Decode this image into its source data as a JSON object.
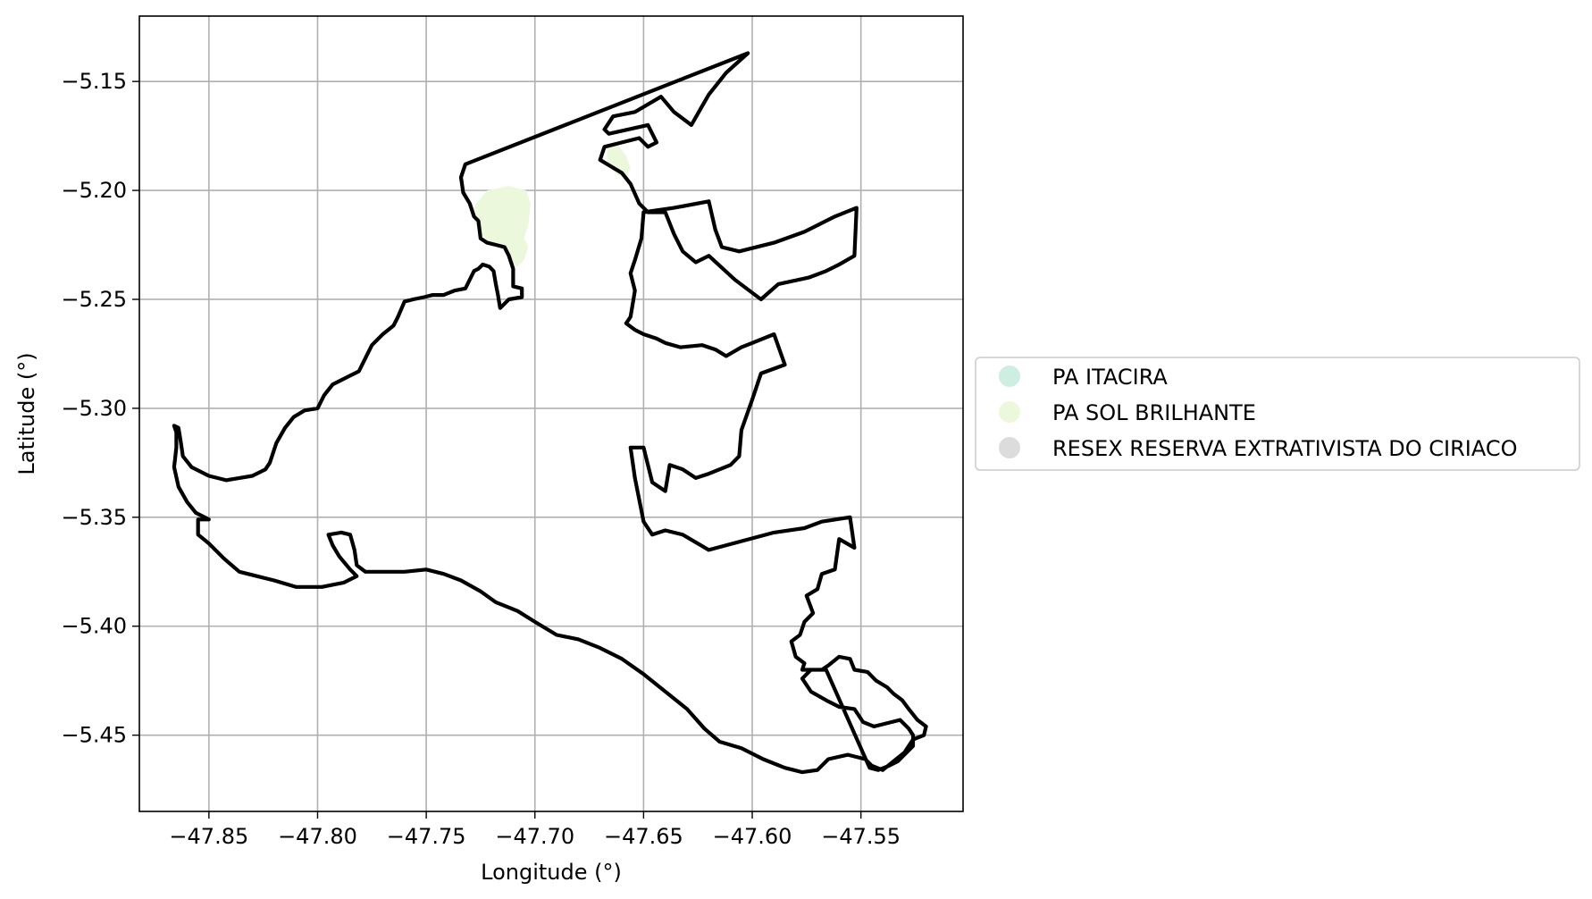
{
  "chart_data": {
    "type": "map",
    "xlabel": "Longitude (°)",
    "ylabel": "Latitude (°)",
    "xlim": [
      -47.882,
      -47.503
    ],
    "ylim": [
      -5.485,
      -5.12
    ],
    "grid": true,
    "xticks": [
      -47.85,
      -47.8,
      -47.75,
      -47.7,
      -47.65,
      -47.6,
      -47.55
    ],
    "xtick_labels": [
      "−47.85",
      "−47.80",
      "−47.75",
      "−47.70",
      "−47.65",
      "−47.60",
      "−47.55"
    ],
    "yticks": [
      -5.15,
      -5.2,
      -5.25,
      -5.3,
      -5.35,
      -5.4,
      -5.45
    ],
    "ytick_labels": [
      "−5.15",
      "−5.20",
      "−5.25",
      "−5.30",
      "−5.35",
      "−5.40",
      "−5.45"
    ],
    "legend_position": "right",
    "legend": [
      {
        "name": "PA ITACIRA",
        "color": "#cdeee0"
      },
      {
        "name": "PA SOL BRILHANTE",
        "color": "#ecf8dc"
      },
      {
        "name": "RESEX RESERVA EXTRATIVISTA DO CIRIACO",
        "color": "#dcdcdc"
      }
    ],
    "areas": [
      {
        "name": "PA SOL BRILHANTE",
        "fill": "#ecf8dc",
        "coords": [
          [
            -47.727,
            -5.206
          ],
          [
            -47.722,
            -5.2
          ],
          [
            -47.712,
            -5.198
          ],
          [
            -47.704,
            -5.2
          ],
          [
            -47.702,
            -5.206
          ],
          [
            -47.703,
            -5.216
          ],
          [
            -47.705,
            -5.222
          ],
          [
            -47.703,
            -5.226
          ],
          [
            -47.705,
            -5.232
          ],
          [
            -47.708,
            -5.235
          ],
          [
            -47.711,
            -5.233
          ],
          [
            -47.714,
            -5.227
          ],
          [
            -47.72,
            -5.225
          ],
          [
            -47.724,
            -5.221
          ],
          [
            -47.728,
            -5.215
          ],
          [
            -47.728,
            -5.208
          ]
        ]
      },
      {
        "name": "PA SOL BRILHANTE",
        "fill": "#ecf8dc",
        "coords": [
          [
            -47.666,
            -5.18
          ],
          [
            -47.662,
            -5.179
          ],
          [
            -47.658,
            -5.184
          ],
          [
            -47.656,
            -5.19
          ],
          [
            -47.658,
            -5.194
          ],
          [
            -47.662,
            -5.193
          ],
          [
            -47.666,
            -5.189
          ],
          [
            -47.667,
            -5.184
          ]
        ]
      }
    ],
    "boundary": {
      "name": "RESEX RESERVA EXTRATIVISTA DO CIRIACO",
      "stroke": "#000000",
      "coords": [
        [
          -47.732,
          -5.188
        ],
        [
          -47.734,
          -5.194
        ],
        [
          -47.733,
          -5.201
        ],
        [
          -47.73,
          -5.206
        ],
        [
          -47.728,
          -5.212
        ],
        [
          -47.726,
          -5.214
        ],
        [
          -47.725,
          -5.222
        ],
        [
          -47.722,
          -5.224
        ],
        [
          -47.718,
          -5.225
        ],
        [
          -47.714,
          -5.226
        ],
        [
          -47.712,
          -5.23
        ],
        [
          -47.71,
          -5.236
        ],
        [
          -47.71,
          -5.244
        ],
        [
          -47.706,
          -5.245
        ],
        [
          -47.706,
          -5.249
        ],
        [
          -47.712,
          -5.25
        ],
        [
          -47.716,
          -5.254
        ],
        [
          -47.717,
          -5.248
        ],
        [
          -47.718,
          -5.243
        ],
        [
          -47.719,
          -5.237
        ],
        [
          -47.721,
          -5.235
        ],
        [
          -47.724,
          -5.234
        ],
        [
          -47.726,
          -5.236
        ],
        [
          -47.728,
          -5.237
        ],
        [
          -47.73,
          -5.241
        ],
        [
          -47.732,
          -5.245
        ],
        [
          -47.737,
          -5.246
        ],
        [
          -47.742,
          -5.248
        ],
        [
          -47.747,
          -5.248
        ],
        [
          -47.751,
          -5.249
        ],
        [
          -47.756,
          -5.25
        ],
        [
          -47.76,
          -5.251
        ],
        [
          -47.763,
          -5.258
        ],
        [
          -47.765,
          -5.262
        ],
        [
          -47.77,
          -5.266
        ],
        [
          -47.775,
          -5.271
        ],
        [
          -47.778,
          -5.277
        ],
        [
          -47.781,
          -5.283
        ],
        [
          -47.787,
          -5.286
        ],
        [
          -47.793,
          -5.289
        ],
        [
          -47.797,
          -5.294
        ],
        [
          -47.8,
          -5.3
        ],
        [
          -47.806,
          -5.301
        ],
        [
          -47.811,
          -5.304
        ],
        [
          -47.815,
          -5.309
        ],
        [
          -47.819,
          -5.316
        ],
        [
          -47.822,
          -5.325
        ],
        [
          -47.824,
          -5.328
        ],
        [
          -47.83,
          -5.331
        ],
        [
          -47.836,
          -5.332
        ],
        [
          -47.842,
          -5.333
        ],
        [
          -47.85,
          -5.331
        ],
        [
          -47.858,
          -5.327
        ],
        [
          -47.862,
          -5.322
        ],
        [
          -47.863,
          -5.315
        ],
        [
          -47.864,
          -5.309
        ],
        [
          -47.866,
          -5.308
        ],
        [
          -47.865,
          -5.311
        ],
        [
          -47.865,
          -5.318
        ],
        [
          -47.866,
          -5.327
        ],
        [
          -47.864,
          -5.336
        ],
        [
          -47.86,
          -5.343
        ],
        [
          -47.856,
          -5.348
        ],
        [
          -47.85,
          -5.351
        ],
        [
          -47.855,
          -5.351
        ],
        [
          -47.855,
          -5.358
        ],
        [
          -47.85,
          -5.362
        ],
        [
          -47.843,
          -5.369
        ],
        [
          -47.836,
          -5.375
        ],
        [
          -47.828,
          -5.377
        ],
        [
          -47.82,
          -5.379
        ],
        [
          -47.81,
          -5.382
        ],
        [
          -47.798,
          -5.382
        ],
        [
          -47.788,
          -5.38
        ],
        [
          -47.782,
          -5.377
        ],
        [
          -47.785,
          -5.374
        ],
        [
          -47.79,
          -5.368
        ],
        [
          -47.793,
          -5.363
        ],
        [
          -47.795,
          -5.358
        ],
        [
          -47.789,
          -5.357
        ],
        [
          -47.785,
          -5.358
        ],
        [
          -47.783,
          -5.365
        ],
        [
          -47.782,
          -5.372
        ],
        [
          -47.778,
          -5.375
        ],
        [
          -47.77,
          -5.375
        ],
        [
          -47.76,
          -5.375
        ],
        [
          -47.75,
          -5.374
        ],
        [
          -47.742,
          -5.376
        ],
        [
          -47.734,
          -5.379
        ],
        [
          -47.725,
          -5.384
        ],
        [
          -47.718,
          -5.389
        ],
        [
          -47.708,
          -5.393
        ],
        [
          -47.7,
          -5.398
        ],
        [
          -47.69,
          -5.404
        ],
        [
          -47.68,
          -5.406
        ],
        [
          -47.67,
          -5.41
        ],
        [
          -47.66,
          -5.415
        ],
        [
          -47.65,
          -5.422
        ],
        [
          -47.64,
          -5.43
        ],
        [
          -47.63,
          -5.438
        ],
        [
          -47.622,
          -5.447
        ],
        [
          -47.615,
          -5.453
        ],
        [
          -47.605,
          -5.456
        ],
        [
          -47.595,
          -5.461
        ],
        [
          -47.585,
          -5.465
        ],
        [
          -47.577,
          -5.467
        ],
        [
          -47.57,
          -5.466
        ],
        [
          -47.565,
          -5.461
        ],
        [
          -47.556,
          -5.459
        ],
        [
          -47.548,
          -5.461
        ],
        [
          -47.545,
          -5.464
        ],
        [
          -47.54,
          -5.466
        ],
        [
          -47.535,
          -5.462
        ],
        [
          -47.53,
          -5.458
        ],
        [
          -47.526,
          -5.452
        ],
        [
          -47.521,
          -5.45
        ],
        [
          -47.52,
          -5.446
        ],
        [
          -47.524,
          -5.443
        ],
        [
          -47.528,
          -5.438
        ],
        [
          -47.531,
          -5.434
        ],
        [
          -47.535,
          -5.431
        ],
        [
          -47.538,
          -5.428
        ],
        [
          -47.543,
          -5.425
        ],
        [
          -47.547,
          -5.421
        ],
        [
          -47.553,
          -5.42
        ],
        [
          -47.555,
          -5.415
        ],
        [
          -47.56,
          -5.414
        ],
        [
          -47.565,
          -5.418
        ],
        [
          -47.568,
          -5.42
        ],
        [
          -47.573,
          -5.42
        ],
        [
          -47.577,
          -5.424
        ],
        [
          -47.573,
          -5.43
        ],
        [
          -47.566,
          -5.434
        ],
        [
          -47.56,
          -5.437
        ],
        [
          -47.553,
          -5.438
        ],
        [
          -47.549,
          -5.444
        ],
        [
          -47.544,
          -5.446
        ],
        [
          -47.54,
          -5.445
        ],
        [
          -47.532,
          -5.443
        ],
        [
          -47.528,
          -5.447
        ],
        [
          -47.526,
          -5.45
        ],
        [
          -47.526,
          -5.455
        ],
        [
          -47.529,
          -5.458
        ],
        [
          -47.533,
          -5.462
        ],
        [
          -47.537,
          -5.464
        ],
        [
          -47.542,
          -5.466
        ],
        [
          -47.546,
          -5.465
        ]
      ],
      "coords_east": [
        [
          -47.602,
          -5.137
        ],
        [
          -47.612,
          -5.146
        ],
        [
          -47.62,
          -5.156
        ],
        [
          -47.624,
          -5.163
        ],
        [
          -47.628,
          -5.17
        ],
        [
          -47.636,
          -5.164
        ],
        [
          -47.642,
          -5.157
        ],
        [
          -47.654,
          -5.164
        ],
        [
          -47.664,
          -5.166
        ],
        [
          -47.668,
          -5.172
        ],
        [
          -47.666,
          -5.174
        ],
        [
          -47.648,
          -5.17
        ],
        [
          -47.644,
          -5.178
        ],
        [
          -47.648,
          -5.18
        ],
        [
          -47.652,
          -5.176
        ],
        [
          -47.66,
          -5.178
        ],
        [
          -47.668,
          -5.18
        ],
        [
          -47.67,
          -5.186
        ],
        [
          -47.66,
          -5.192
        ],
        [
          -47.656,
          -5.197
        ],
        [
          -47.652,
          -5.206
        ],
        [
          -47.648,
          -5.21
        ],
        [
          -47.64,
          -5.21
        ],
        [
          -47.636,
          -5.22
        ],
        [
          -47.632,
          -5.228
        ],
        [
          -47.626,
          -5.233
        ],
        [
          -47.62,
          -5.23
        ],
        [
          -47.608,
          -5.241
        ],
        [
          -47.596,
          -5.25
        ],
        [
          -47.588,
          -5.243
        ],
        [
          -47.574,
          -5.24
        ],
        [
          -47.566,
          -5.237
        ],
        [
          -47.56,
          -5.234
        ],
        [
          -47.553,
          -5.23
        ],
        [
          -47.552,
          -5.208
        ],
        [
          -47.562,
          -5.212
        ],
        [
          -47.576,
          -5.219
        ],
        [
          -47.59,
          -5.224
        ],
        [
          -47.606,
          -5.228
        ],
        [
          -47.614,
          -5.226
        ],
        [
          -47.617,
          -5.218
        ],
        [
          -47.62,
          -5.205
        ],
        [
          -47.636,
          -5.208
        ],
        [
          -47.65,
          -5.21
        ],
        [
          -47.651,
          -5.222
        ],
        [
          -47.654,
          -5.232
        ],
        [
          -47.656,
          -5.238
        ],
        [
          -47.654,
          -5.246
        ],
        [
          -47.656,
          -5.258
        ],
        [
          -47.658,
          -5.261
        ],
        [
          -47.654,
          -5.264
        ],
        [
          -47.65,
          -5.266
        ],
        [
          -47.644,
          -5.268
        ],
        [
          -47.64,
          -5.27
        ],
        [
          -47.633,
          -5.272
        ],
        [
          -47.623,
          -5.271
        ],
        [
          -47.617,
          -5.273
        ],
        [
          -47.612,
          -5.276
        ],
        [
          -47.605,
          -5.272
        ],
        [
          -47.6,
          -5.27
        ],
        [
          -47.59,
          -5.266
        ],
        [
          -47.585,
          -5.28
        ],
        [
          -47.596,
          -5.284
        ],
        [
          -47.6,
          -5.296
        ],
        [
          -47.605,
          -5.31
        ],
        [
          -47.606,
          -5.322
        ],
        [
          -47.61,
          -5.326
        ],
        [
          -47.62,
          -5.33
        ],
        [
          -47.626,
          -5.332
        ],
        [
          -47.632,
          -5.328
        ],
        [
          -47.638,
          -5.326
        ],
        [
          -47.64,
          -5.338
        ],
        [
          -47.646,
          -5.334
        ],
        [
          -47.65,
          -5.318
        ],
        [
          -47.656,
          -5.318
        ],
        [
          -47.654,
          -5.332
        ],
        [
          -47.65,
          -5.352
        ],
        [
          -47.646,
          -5.358
        ],
        [
          -47.64,
          -5.356
        ],
        [
          -47.632,
          -5.358
        ],
        [
          -47.62,
          -5.365
        ],
        [
          -47.605,
          -5.361
        ],
        [
          -47.59,
          -5.357
        ],
        [
          -47.576,
          -5.355
        ],
        [
          -47.568,
          -5.352
        ],
        [
          -47.555,
          -5.35
        ],
        [
          -47.553,
          -5.364
        ],
        [
          -47.56,
          -5.36
        ],
        [
          -47.562,
          -5.374
        ],
        [
          -47.568,
          -5.376
        ],
        [
          -47.57,
          -5.383
        ],
        [
          -47.575,
          -5.386
        ],
        [
          -47.572,
          -5.394
        ],
        [
          -47.576,
          -5.398
        ],
        [
          -47.578,
          -5.404
        ],
        [
          -47.582,
          -5.407
        ],
        [
          -47.58,
          -5.414
        ],
        [
          -47.576,
          -5.417
        ],
        [
          -47.577,
          -5.42
        ],
        [
          -47.566,
          -5.42
        ]
      ]
    }
  }
}
